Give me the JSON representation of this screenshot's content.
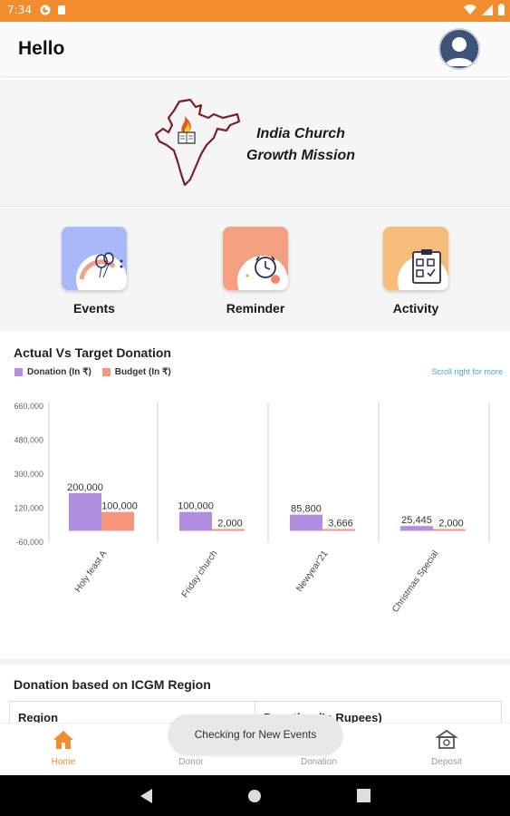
{
  "status_bar": {
    "time": "7:34"
  },
  "app_bar": {
    "title": "Hello"
  },
  "banner": {
    "line1": "India Church",
    "line2": "Growth Mission"
  },
  "quick_actions": [
    {
      "label": "Events",
      "icon": "events-icon",
      "color": "#a8b8f8"
    },
    {
      "label": "Reminder",
      "icon": "reminder-icon",
      "color": "#f4a080"
    },
    {
      "label": "Activity",
      "icon": "activity-icon",
      "color": "#f6bd7a"
    }
  ],
  "chart_section": {
    "title": "Actual Vs Target Donation",
    "scroll_hint": "Scroll right for more"
  },
  "chart_data": {
    "type": "bar",
    "categories": [
      "Holy feast A",
      "Friday church",
      "Newyear'21",
      "Christmas Special"
    ],
    "series": [
      {
        "name": "Donation (In ₹)",
        "color": "#b28ee0",
        "values": [
          200000,
          100000,
          85800,
          25445
        ],
        "labels": [
          "200,000",
          "100,000",
          "85,800",
          "25,445"
        ]
      },
      {
        "name": "Budget (In ₹)",
        "color": "#f5957a",
        "values": [
          100000,
          2000,
          3666,
          2000
        ],
        "labels": [
          "100,000",
          "2,000",
          "3,666",
          "2,000"
        ]
      }
    ],
    "yticks": [
      "660,000",
      "480,000",
      "300,000",
      "120,000",
      "-60,000"
    ],
    "ylim": [
      -60000,
      660000
    ]
  },
  "region_section": {
    "title": "Donation based on ICGM Region",
    "columns": [
      "Region",
      "Donation (In Rupees)"
    ]
  },
  "toast": "Checking for New Events",
  "bottom_nav": [
    {
      "label": "Home",
      "icon": "home-icon",
      "active": true
    },
    {
      "label": "Donor",
      "icon": "donor-icon",
      "active": false
    },
    {
      "label": "Donation",
      "icon": "donation-icon",
      "active": false
    },
    {
      "label": "Deposit",
      "icon": "deposit-icon",
      "active": false
    }
  ]
}
